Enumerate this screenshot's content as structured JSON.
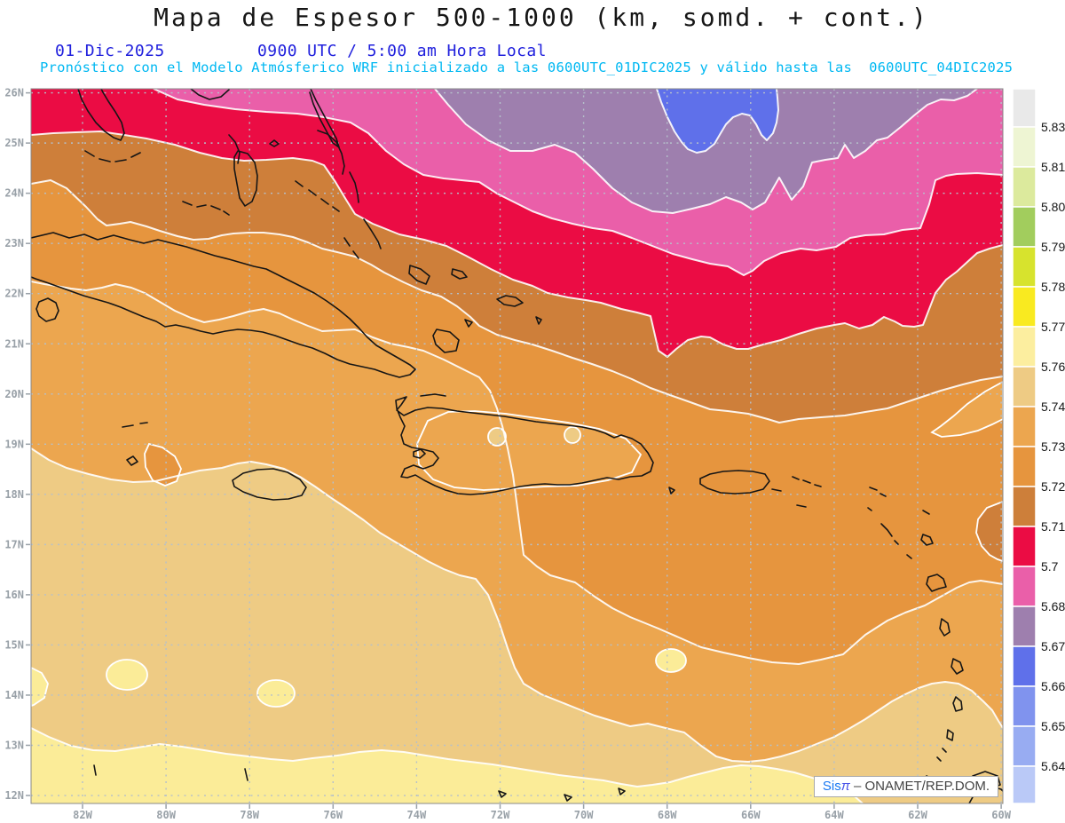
{
  "header": {
    "title": "Mapa de Espesor 500-1000 (km, somd. + cont.)",
    "date": "01-Dic-2025",
    "time": "0900 UTC / 5:00 am Hora Local",
    "forecast_line": "Pronóstico con el Modelo Atmósferico WRF inicializado a las 0600UTC_01DIC2025 y válido hasta las  0600UTC_04DIC2025"
  },
  "watermark": {
    "sis": "Sis",
    "pi": "π",
    "sep": " – ",
    "org": "ONAMET/REP.DOM."
  },
  "axes": {
    "lat_labels": [
      "26N",
      "25N",
      "24N",
      "23N",
      "22N",
      "21N",
      "20N",
      "19N",
      "18N",
      "17N",
      "16N",
      "15N",
      "14N",
      "13N",
      "12N"
    ],
    "lon_labels": [
      "82W",
      "80W",
      "78W",
      "76W",
      "74W",
      "72W",
      "70W",
      "68W",
      "66W",
      "64W",
      "62W",
      "60W"
    ]
  },
  "colorbar": {
    "levels": [
      "5.831",
      "5.819",
      "5.807",
      "5.795",
      "5.783",
      "5.772",
      "5.76",
      "5.748",
      "5.736",
      "5.724",
      "5.712",
      "5.7",
      "5.688",
      "5.676",
      "5.664",
      "5.652",
      "5.64"
    ],
    "colors": [
      "#e9e9e9",
      "#eef5d3",
      "#dcea9d",
      "#a2cd5d",
      "#d7e32d",
      "#f9ea20",
      "#fcee9f",
      "#eecb84",
      "#eca64f",
      "#e6953e",
      "#cd7f3a",
      "#eb0c44",
      "#ea5fa9",
      "#9e7fae",
      "#5f70ea",
      "#8093ee",
      "#98acf2",
      "#bac9f7"
    ]
  },
  "map": {
    "band_colors": {
      "blue": "#5f70ea",
      "purple": "#9e7fae",
      "pink": "#ea5fa9",
      "red": "#eb0c44",
      "darkorange": "#ce7f3a",
      "orange": "#e6953e",
      "lightorange": "#eca64f",
      "tan": "#eecb84",
      "paleyellow": "#fbec98"
    },
    "grid_color": "#b5c0ca",
    "contour_color": "#ffffff",
    "coast_color": "#151515"
  },
  "chart_data": {
    "type": "heatmap",
    "title": "Mapa de Espesor 500-1000 (km, somd. + cont.)",
    "variable": "Espesor (thickness) 500-1000",
    "units": "km",
    "model": "WRF",
    "initialized": "0600UTC_01DIC2025",
    "valid_until": "0600UTC_04DIC2025",
    "valid_time": "01-Dic-2025 0900 UTC / 5:00 am Hora Local",
    "lat_range": [
      "12N",
      "26N"
    ],
    "lon_range": [
      "83W",
      "60W"
    ],
    "legend_position": "right",
    "grid": "dotted, 1° latitude x 2° longitude",
    "scale_levels": [
      5.64,
      5.652,
      5.664,
      5.676,
      5.688,
      5.7,
      5.712,
      5.724,
      5.736,
      5.748,
      5.76,
      5.772,
      5.783,
      5.795,
      5.807,
      5.819,
      5.831
    ],
    "bands_north_to_south": [
      {
        "value_range": "5.664-5.676",
        "color_name": "blue",
        "where": "small lobe at top center ~70W-68W north of 25N"
      },
      {
        "value_range": "5.676-5.688",
        "color_name": "purple",
        "where": "top band ~73W-62W, 24N-26N"
      },
      {
        "value_range": "5.688-5.7",
        "color_name": "pink",
        "where": "band across north, touches top edge 80W-74W and NE corner"
      },
      {
        "value_range": "5.7-5.712",
        "color_name": "red",
        "where": "wide band ~25N west sloping to ~21N center-east"
      },
      {
        "value_range": "5.712-5.724",
        "color_name": "dark orange",
        "where": "band over Bahamas, 23N-25N west to 21N east"
      },
      {
        "value_range": "5.724-5.736",
        "color_name": "orange",
        "where": "band over Cuba north coast to Puerto Rico latitude"
      },
      {
        "value_range": "5.736-5.748",
        "color_name": "light orange",
        "where": "band over central Cuba, Hispaniola halo, eastern Caribbean"
      },
      {
        "value_range": "5.748-5.76",
        "color_name": "tan",
        "where": "broad southwest Caribbean band incl. Jamaica"
      },
      {
        "value_range": "5.76-5.772",
        "color_name": "pale yellow",
        "where": "southern strip below ~13N-14N"
      }
    ]
  }
}
